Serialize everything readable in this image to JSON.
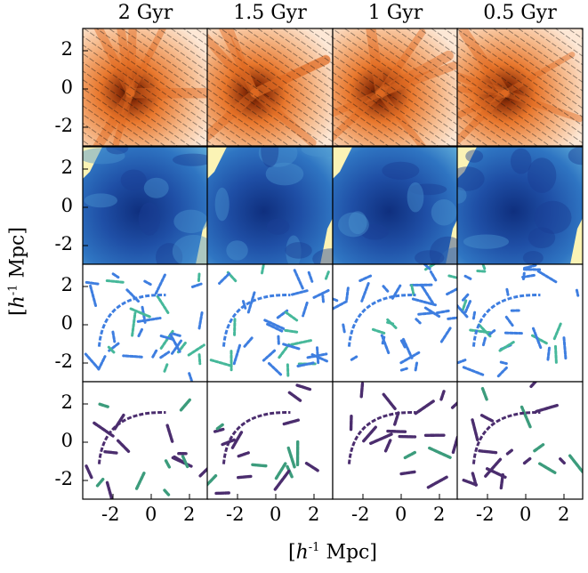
{
  "figure": {
    "columns": [
      "2 Gyr",
      "1.5 Gyr",
      "1 Gyr",
      "0.5 Gyr"
    ],
    "y_ticks": [
      "2",
      "0",
      "-2"
    ],
    "x_ticks": [
      "-2",
      "0",
      "2"
    ],
    "y_label": {
      "h": "h",
      "exp": "-1",
      "unit": " Mpc"
    },
    "x_label": {
      "h": "h",
      "exp": "-1",
      "unit": " Mpc"
    },
    "rows": [
      {
        "name": "density-velocity",
        "colors": [
          "#fde8d6",
          "#e8762b",
          "#5a1e06"
        ]
      },
      {
        "name": "temperature",
        "colors": [
          "#fbf3b5",
          "#2b63b8",
          "#0f2f7e"
        ]
      },
      {
        "name": "shock-field",
        "colors": [
          "#ffffff",
          "#3e7ee0",
          "#46b89a"
        ]
      },
      {
        "name": "strong-shocks",
        "colors": [
          "#ffffff",
          "#4b2d6e",
          "#3c9c7c"
        ]
      }
    ]
  }
}
